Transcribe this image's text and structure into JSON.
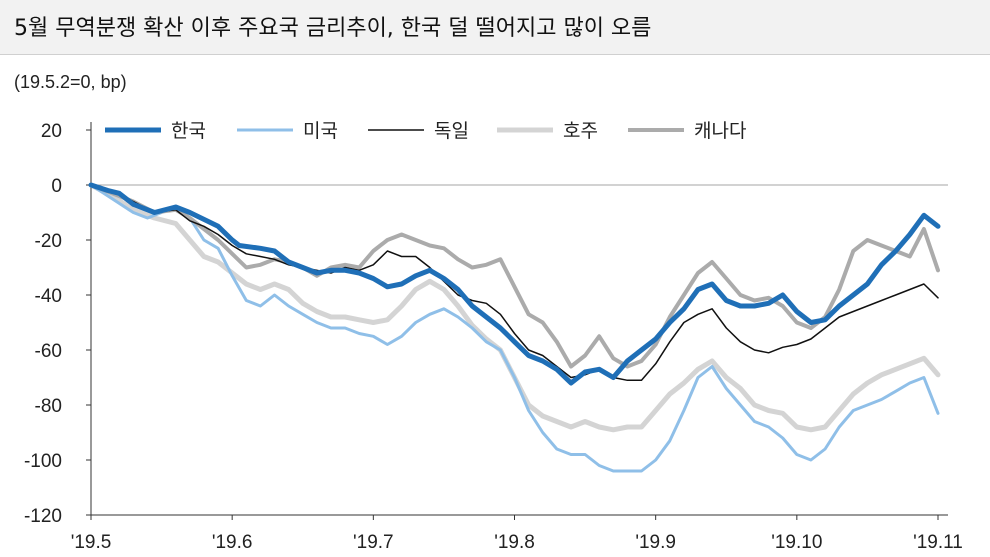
{
  "title": "5월 무역분쟁 확산 이후 주요국 금리추이, 한국 덜 떨어지고 많이 오름",
  "unit": "(19.5.2=0, bp)",
  "chart_data": {
    "type": "line",
    "ylim": [
      -120,
      20
    ],
    "yticks": [
      20,
      0,
      -20,
      -40,
      -60,
      -80,
      -100,
      -120
    ],
    "xticks": [
      "'19.5",
      "'19.6",
      "'19.7",
      "'19.8",
      "'19.9",
      "'19.10",
      "'19.11"
    ],
    "legend_position": "top",
    "series": [
      {
        "name": "한국",
        "color": "#1f6fb7",
        "width": 5,
        "points": [
          [
            0,
            0
          ],
          [
            0.12,
            -2
          ],
          [
            0.2,
            -3
          ],
          [
            0.3,
            -7
          ],
          [
            0.45,
            -10
          ],
          [
            0.6,
            -8
          ],
          [
            0.7,
            -10
          ],
          [
            0.9,
            -15
          ],
          [
            1.0,
            -20
          ],
          [
            1.05,
            -22
          ],
          [
            1.2,
            -23
          ],
          [
            1.3,
            -24
          ],
          [
            1.4,
            -28
          ],
          [
            1.5,
            -30
          ],
          [
            1.6,
            -32
          ],
          [
            1.7,
            -31
          ],
          [
            1.8,
            -31
          ],
          [
            1.9,
            -32
          ],
          [
            2.0,
            -34
          ],
          [
            2.1,
            -37
          ],
          [
            2.2,
            -36
          ],
          [
            2.3,
            -33
          ],
          [
            2.4,
            -31
          ],
          [
            2.5,
            -34
          ],
          [
            2.6,
            -38
          ],
          [
            2.7,
            -44
          ],
          [
            2.8,
            -48
          ],
          [
            2.9,
            -52
          ],
          [
            3.0,
            -57
          ],
          [
            3.1,
            -62
          ],
          [
            3.2,
            -64
          ],
          [
            3.3,
            -67
          ],
          [
            3.4,
            -72
          ],
          [
            3.5,
            -68
          ],
          [
            3.6,
            -67
          ],
          [
            3.7,
            -70
          ],
          [
            3.8,
            -64
          ],
          [
            3.9,
            -60
          ],
          [
            4.0,
            -56
          ],
          [
            4.1,
            -50
          ],
          [
            4.2,
            -45
          ],
          [
            4.3,
            -38
          ],
          [
            4.4,
            -36
          ],
          [
            4.5,
            -42
          ],
          [
            4.6,
            -44
          ],
          [
            4.7,
            -44
          ],
          [
            4.8,
            -43
          ],
          [
            4.9,
            -40
          ],
          [
            5.0,
            -46
          ],
          [
            5.1,
            -50
          ],
          [
            5.2,
            -49
          ],
          [
            5.3,
            -44
          ],
          [
            5.4,
            -40
          ],
          [
            5.5,
            -36
          ],
          [
            5.6,
            -29
          ],
          [
            5.7,
            -24
          ],
          [
            5.8,
            -18
          ],
          [
            5.9,
            -11
          ],
          [
            6.0,
            -15
          ]
        ]
      },
      {
        "name": "미국",
        "color": "#8fbfe8",
        "width": 3,
        "points": [
          [
            0,
            0
          ],
          [
            0.15,
            -5
          ],
          [
            0.3,
            -10
          ],
          [
            0.4,
            -12
          ],
          [
            0.6,
            -8
          ],
          [
            0.7,
            -12
          ],
          [
            0.8,
            -20
          ],
          [
            0.9,
            -23
          ],
          [
            1.0,
            -33
          ],
          [
            1.1,
            -42
          ],
          [
            1.2,
            -44
          ],
          [
            1.3,
            -40
          ],
          [
            1.4,
            -44
          ],
          [
            1.5,
            -47
          ],
          [
            1.6,
            -50
          ],
          [
            1.7,
            -52
          ],
          [
            1.8,
            -52
          ],
          [
            1.9,
            -54
          ],
          [
            2.0,
            -55
          ],
          [
            2.1,
            -58
          ],
          [
            2.2,
            -55
          ],
          [
            2.3,
            -50
          ],
          [
            2.4,
            -47
          ],
          [
            2.5,
            -45
          ],
          [
            2.6,
            -48
          ],
          [
            2.7,
            -52
          ],
          [
            2.8,
            -57
          ],
          [
            2.9,
            -60
          ],
          [
            3.0,
            -70
          ],
          [
            3.1,
            -82
          ],
          [
            3.2,
            -90
          ],
          [
            3.3,
            -96
          ],
          [
            3.4,
            -98
          ],
          [
            3.5,
            -98
          ],
          [
            3.6,
            -102
          ],
          [
            3.7,
            -104
          ],
          [
            3.8,
            -104
          ],
          [
            3.9,
            -104
          ],
          [
            4.0,
            -100
          ],
          [
            4.1,
            -93
          ],
          [
            4.2,
            -82
          ],
          [
            4.3,
            -70
          ],
          [
            4.4,
            -66
          ],
          [
            4.5,
            -74
          ],
          [
            4.6,
            -80
          ],
          [
            4.7,
            -86
          ],
          [
            4.8,
            -88
          ],
          [
            4.9,
            -92
          ],
          [
            5.0,
            -98
          ],
          [
            5.1,
            -100
          ],
          [
            5.2,
            -96
          ],
          [
            5.3,
            -88
          ],
          [
            5.4,
            -82
          ],
          [
            5.5,
            -80
          ],
          [
            5.6,
            -78
          ],
          [
            5.7,
            -75
          ],
          [
            5.8,
            -72
          ],
          [
            5.9,
            -70
          ],
          [
            6.0,
            -83
          ]
        ]
      },
      {
        "name": "독일",
        "color": "#111111",
        "width": 1.5,
        "points": [
          [
            0,
            0
          ],
          [
            0.15,
            -2
          ],
          [
            0.3,
            -6
          ],
          [
            0.45,
            -10
          ],
          [
            0.6,
            -9
          ],
          [
            0.7,
            -13
          ],
          [
            0.8,
            -15
          ],
          [
            0.9,
            -18
          ],
          [
            1.0,
            -22
          ],
          [
            1.1,
            -25
          ],
          [
            1.2,
            -26
          ],
          [
            1.3,
            -27
          ],
          [
            1.4,
            -29
          ],
          [
            1.5,
            -30
          ],
          [
            1.6,
            -31
          ],
          [
            1.7,
            -32
          ],
          [
            1.8,
            -30
          ],
          [
            1.9,
            -31
          ],
          [
            2.0,
            -29
          ],
          [
            2.1,
            -24
          ],
          [
            2.2,
            -26
          ],
          [
            2.3,
            -26
          ],
          [
            2.4,
            -30
          ],
          [
            2.5,
            -35
          ],
          [
            2.6,
            -40
          ],
          [
            2.7,
            -42
          ],
          [
            2.8,
            -43
          ],
          [
            2.9,
            -47
          ],
          [
            3.0,
            -54
          ],
          [
            3.1,
            -60
          ],
          [
            3.2,
            -62
          ],
          [
            3.3,
            -66
          ],
          [
            3.4,
            -70
          ],
          [
            3.5,
            -69
          ],
          [
            3.6,
            -67
          ],
          [
            3.7,
            -70
          ],
          [
            3.8,
            -71
          ],
          [
            3.9,
            -71
          ],
          [
            4.0,
            -65
          ],
          [
            4.1,
            -57
          ],
          [
            4.2,
            -50
          ],
          [
            4.3,
            -47
          ],
          [
            4.4,
            -45
          ],
          [
            4.5,
            -52
          ],
          [
            4.6,
            -57
          ],
          [
            4.7,
            -60
          ],
          [
            4.8,
            -61
          ],
          [
            4.9,
            -59
          ],
          [
            5.0,
            -58
          ],
          [
            5.1,
            -56
          ],
          [
            5.2,
            -52
          ],
          [
            5.3,
            -48
          ],
          [
            5.4,
            -46
          ],
          [
            5.5,
            -44
          ],
          [
            5.6,
            -42
          ],
          [
            5.7,
            -40
          ],
          [
            5.8,
            -38
          ],
          [
            5.9,
            -36
          ],
          [
            6.0,
            -41
          ]
        ]
      },
      {
        "name": "호주",
        "color": "#d4d4d4",
        "width": 5,
        "points": [
          [
            0,
            0
          ],
          [
            0.15,
            -4
          ],
          [
            0.3,
            -9
          ],
          [
            0.45,
            -12
          ],
          [
            0.6,
            -14
          ],
          [
            0.7,
            -20
          ],
          [
            0.8,
            -26
          ],
          [
            0.9,
            -28
          ],
          [
            1.0,
            -32
          ],
          [
            1.1,
            -36
          ],
          [
            1.2,
            -38
          ],
          [
            1.3,
            -36
          ],
          [
            1.4,
            -38
          ],
          [
            1.5,
            -43
          ],
          [
            1.6,
            -46
          ],
          [
            1.7,
            -48
          ],
          [
            1.8,
            -48
          ],
          [
            1.9,
            -49
          ],
          [
            2.0,
            -50
          ],
          [
            2.1,
            -49
          ],
          [
            2.2,
            -44
          ],
          [
            2.3,
            -38
          ],
          [
            2.4,
            -35
          ],
          [
            2.5,
            -38
          ],
          [
            2.6,
            -44
          ],
          [
            2.7,
            -51
          ],
          [
            2.8,
            -56
          ],
          [
            2.9,
            -60
          ],
          [
            3.0,
            -70
          ],
          [
            3.1,
            -80
          ],
          [
            3.2,
            -84
          ],
          [
            3.3,
            -86
          ],
          [
            3.4,
            -88
          ],
          [
            3.5,
            -86
          ],
          [
            3.6,
            -88
          ],
          [
            3.7,
            -89
          ],
          [
            3.8,
            -88
          ],
          [
            3.9,
            -88
          ],
          [
            4.0,
            -82
          ],
          [
            4.1,
            -76
          ],
          [
            4.2,
            -72
          ],
          [
            4.3,
            -67
          ],
          [
            4.4,
            -64
          ],
          [
            4.5,
            -70
          ],
          [
            4.6,
            -74
          ],
          [
            4.7,
            -80
          ],
          [
            4.8,
            -82
          ],
          [
            4.9,
            -83
          ],
          [
            5.0,
            -88
          ],
          [
            5.1,
            -89
          ],
          [
            5.2,
            -88
          ],
          [
            5.3,
            -82
          ],
          [
            5.4,
            -76
          ],
          [
            5.5,
            -72
          ],
          [
            5.6,
            -69
          ],
          [
            5.7,
            -67
          ],
          [
            5.8,
            -65
          ],
          [
            5.9,
            -63
          ],
          [
            6.0,
            -69
          ]
        ]
      },
      {
        "name": "캐나다",
        "color": "#ababab",
        "width": 4,
        "points": [
          [
            0,
            0
          ],
          [
            0.15,
            -3
          ],
          [
            0.3,
            -6
          ],
          [
            0.45,
            -10
          ],
          [
            0.6,
            -9
          ],
          [
            0.7,
            -12
          ],
          [
            0.8,
            -16
          ],
          [
            0.9,
            -20
          ],
          [
            1.0,
            -25
          ],
          [
            1.1,
            -30
          ],
          [
            1.2,
            -29
          ],
          [
            1.3,
            -27
          ],
          [
            1.4,
            -28
          ],
          [
            1.5,
            -30
          ],
          [
            1.6,
            -33
          ],
          [
            1.7,
            -30
          ],
          [
            1.8,
            -29
          ],
          [
            1.9,
            -30
          ],
          [
            2.0,
            -24
          ],
          [
            2.1,
            -20
          ],
          [
            2.2,
            -18
          ],
          [
            2.3,
            -20
          ],
          [
            2.4,
            -22
          ],
          [
            2.5,
            -23
          ],
          [
            2.6,
            -27
          ],
          [
            2.7,
            -30
          ],
          [
            2.8,
            -29
          ],
          [
            2.9,
            -27
          ],
          [
            3.0,
            -37
          ],
          [
            3.1,
            -47
          ],
          [
            3.2,
            -50
          ],
          [
            3.3,
            -57
          ],
          [
            3.4,
            -66
          ],
          [
            3.5,
            -62
          ],
          [
            3.6,
            -55
          ],
          [
            3.7,
            -63
          ],
          [
            3.8,
            -66
          ],
          [
            3.9,
            -64
          ],
          [
            4.0,
            -58
          ],
          [
            4.1,
            -48
          ],
          [
            4.2,
            -40
          ],
          [
            4.3,
            -32
          ],
          [
            4.4,
            -28
          ],
          [
            4.5,
            -34
          ],
          [
            4.6,
            -40
          ],
          [
            4.7,
            -42
          ],
          [
            4.8,
            -41
          ],
          [
            4.9,
            -44
          ],
          [
            5.0,
            -50
          ],
          [
            5.1,
            -52
          ],
          [
            5.2,
            -48
          ],
          [
            5.3,
            -38
          ],
          [
            5.4,
            -24
          ],
          [
            5.5,
            -20
          ],
          [
            5.6,
            -22
          ],
          [
            5.7,
            -24
          ],
          [
            5.8,
            -26
          ],
          [
            5.9,
            -16
          ],
          [
            6.0,
            -31
          ]
        ]
      }
    ]
  }
}
